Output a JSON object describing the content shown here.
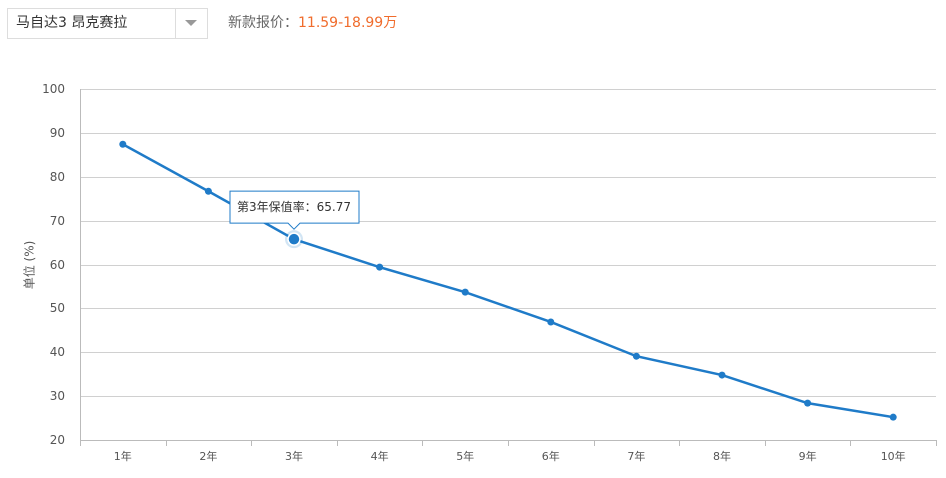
{
  "header": {
    "select": "马自达3 昂克赛拉",
    "price_label": "新款报价：",
    "price": "11.59-18.99万"
  },
  "chart_data": {
    "type": "line",
    "y_label": "单位 (%)",
    "categories": [
      "1年",
      "2年",
      "3年",
      "4年",
      "5年",
      "6年",
      "7年",
      "8年",
      "9年",
      "10年"
    ],
    "values": [
      87.4,
      76.7,
      65.77,
      59.4,
      53.7,
      46.9,
      39.1,
      34.8,
      28.4,
      25.2
    ],
    "color": "#1f7bc8",
    "ylim": [
      20,
      100
    ],
    "yticks": [
      20,
      30,
      40,
      50,
      60,
      70,
      80,
      90,
      100
    ],
    "grid": true,
    "tooltip": {
      "prefix": "第3年保值率："
    }
  }
}
